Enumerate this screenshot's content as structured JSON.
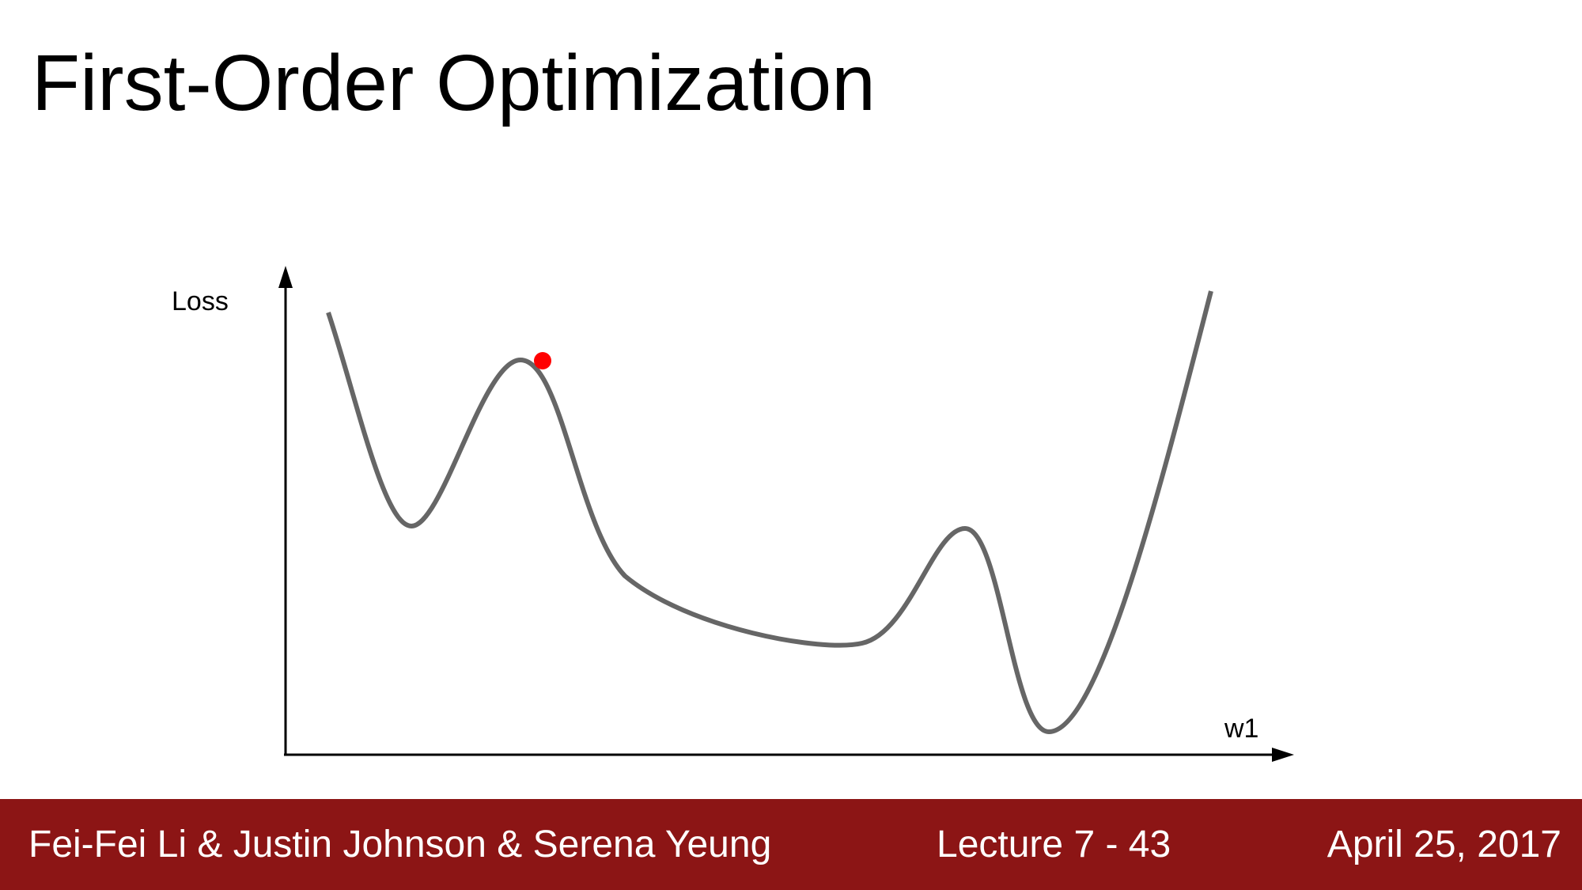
{
  "slide": {
    "title": "First-Order Optimization"
  },
  "diagram": {
    "y_axis_label": "Loss",
    "x_axis_label": "w1",
    "curve_color": "#666666",
    "point_color": "#ff0000",
    "axis_color": "#000000"
  },
  "footer": {
    "authors": "Fei-Fei Li & Justin Johnson & Serena Yeung",
    "lecture": "Lecture 7 - 43",
    "date": "April 25, 2017",
    "background_color": "#8c1515"
  }
}
